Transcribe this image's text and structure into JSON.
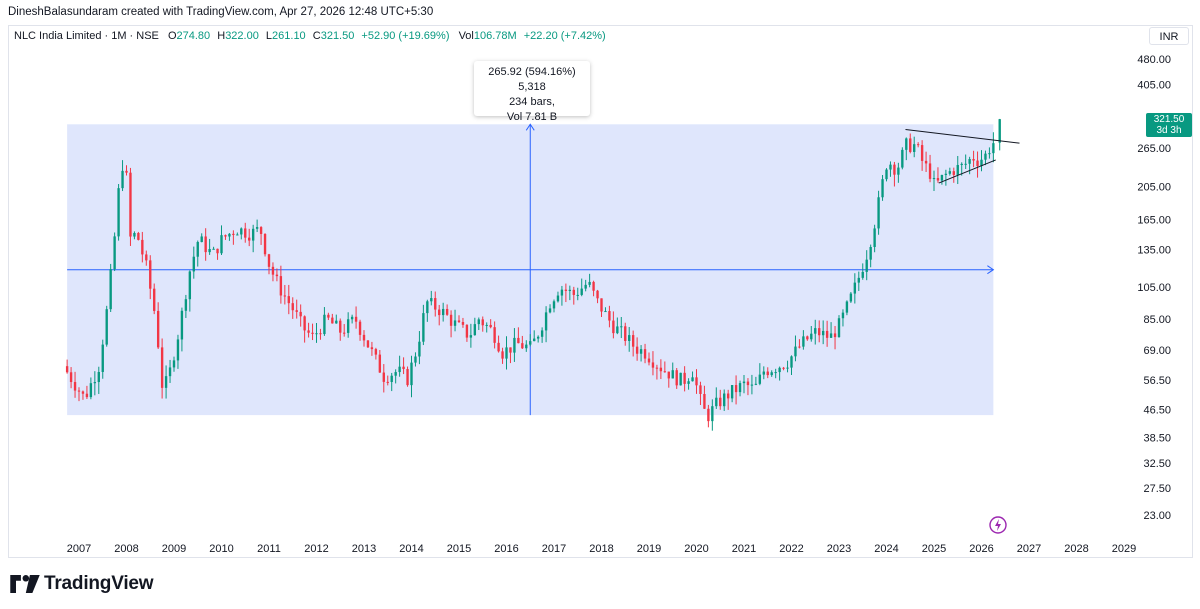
{
  "header": {
    "text": "DineshBalasundaram created with TradingView.com, Apr 27, 2026 12:48 UTC+5:30"
  },
  "legend": {
    "symbol": "NLC India Limited · 1M · NSE",
    "o_label": "O",
    "o_value": "274.80",
    "h_label": "H",
    "h_value": "322.00",
    "l_label": "L",
    "l_value": "261.10",
    "c_label": "C",
    "c_value": "321.50",
    "change": "+52.90 (+19.69%)",
    "vol_label": "Vol",
    "vol_value": "106.78M",
    "vol_change": "+22.20 (+7.42%)"
  },
  "currency": "INR",
  "price_tag": {
    "price": "321.50",
    "countdown": "3d 3h"
  },
  "measure_tooltip": {
    "line1": "265.92 (594.16%) 5,318",
    "line2": "234 bars,",
    "line3": "Vol 7.81 B"
  },
  "brand": {
    "name": "TradingView"
  },
  "colors": {
    "up": "#089981",
    "down": "#f23645",
    "measure_fill": "#dfe6fc",
    "measure_line": "#2962ff",
    "axis_text": "#131722"
  },
  "chart_data": {
    "type": "candlestick",
    "symbol": "NLC India Limited",
    "interval": "1M",
    "yscale": "log",
    "ylim": [
      21,
      560
    ],
    "xlim": [
      2006.7,
      2029.8
    ],
    "y_ticks": [
      "480.00",
      "405.00",
      "265.00",
      "205.00",
      "165.00",
      "135.00",
      "105.00",
      "85.00",
      "69.00",
      "56.50",
      "46.50",
      "38.50",
      "32.50",
      "27.50",
      "23.00"
    ],
    "y_tick_values": [
      480,
      405,
      265,
      205,
      165,
      135,
      105,
      85,
      69,
      56.5,
      46.5,
      38.5,
      32.5,
      27.5,
      23
    ],
    "x_ticks": [
      "2007",
      "2008",
      "2009",
      "2010",
      "2011",
      "2012",
      "2013",
      "2014",
      "2015",
      "2016",
      "2017",
      "2018",
      "2019",
      "2020",
      "2021",
      "2022",
      "2023",
      "2024",
      "2025",
      "2026",
      "2027",
      "2028",
      "2029"
    ],
    "x_tick_values": [
      2007,
      2008,
      2009,
      2010,
      2011,
      2012,
      2013,
      2014,
      2015,
      2016,
      2017,
      2018,
      2019,
      2020,
      2021,
      2022,
      2023,
      2024,
      2025,
      2026,
      2027,
      2028,
      2029
    ],
    "anchors": [
      [
        2006.75,
        62
      ],
      [
        2007.2,
        50
      ],
      [
        2007.5,
        62
      ],
      [
        2007.65,
        85
      ],
      [
        2007.8,
        130
      ],
      [
        2007.92,
        200
      ],
      [
        2008.05,
        265
      ],
      [
        2008.15,
        145
      ],
      [
        2008.3,
        150
      ],
      [
        2008.5,
        120
      ],
      [
        2008.7,
        85
      ],
      [
        2008.85,
        52
      ],
      [
        2009.0,
        60
      ],
      [
        2009.2,
        80
      ],
      [
        2009.4,
        115
      ],
      [
        2009.6,
        145
      ],
      [
        2009.9,
        130
      ],
      [
        2010.1,
        145
      ],
      [
        2010.4,
        155
      ],
      [
        2010.7,
        150
      ],
      [
        2010.9,
        155
      ],
      [
        2011.1,
        120
      ],
      [
        2011.3,
        105
      ],
      [
        2011.6,
        90
      ],
      [
        2011.8,
        80
      ],
      [
        2012.0,
        75
      ],
      [
        2012.3,
        85
      ],
      [
        2012.6,
        78
      ],
      [
        2012.9,
        85
      ],
      [
        2013.2,
        70
      ],
      [
        2013.5,
        58
      ],
      [
        2013.8,
        60
      ],
      [
        2014.0,
        57
      ],
      [
        2014.2,
        70
      ],
      [
        2014.4,
        95
      ],
      [
        2014.7,
        90
      ],
      [
        2015.0,
        82
      ],
      [
        2015.3,
        76
      ],
      [
        2015.5,
        85
      ],
      [
        2015.8,
        78
      ],
      [
        2016.0,
        68
      ],
      [
        2016.3,
        72
      ],
      [
        2016.6,
        70
      ],
      [
        2016.8,
        80
      ],
      [
        2017.0,
        95
      ],
      [
        2017.2,
        105
      ],
      [
        2017.5,
        100
      ],
      [
        2017.8,
        108
      ],
      [
        2018.0,
        95
      ],
      [
        2018.3,
        82
      ],
      [
        2018.6,
        75
      ],
      [
        2018.8,
        70
      ],
      [
        2019.0,
        68
      ],
      [
        2019.3,
        62
      ],
      [
        2019.6,
        58
      ],
      [
        2019.8,
        56
      ],
      [
        2020.0,
        60
      ],
      [
        2020.15,
        50
      ],
      [
        2020.3,
        44
      ],
      [
        2020.5,
        48
      ],
      [
        2020.8,
        52
      ],
      [
        2021.1,
        55
      ],
      [
        2021.3,
        53
      ],
      [
        2021.5,
        60
      ],
      [
        2021.8,
        62
      ],
      [
        2022.0,
        64
      ],
      [
        2022.3,
        72
      ],
      [
        2022.6,
        78
      ],
      [
        2022.9,
        75
      ],
      [
        2023.1,
        82
      ],
      [
        2023.3,
        95
      ],
      [
        2023.5,
        112
      ],
      [
        2023.7,
        135
      ],
      [
        2023.85,
        165
      ],
      [
        2024.0,
        210
      ],
      [
        2024.1,
        245
      ],
      [
        2024.3,
        230
      ],
      [
        2024.5,
        270
      ],
      [
        2024.7,
        270
      ],
      [
        2024.85,
        240
      ],
      [
        2025.0,
        225
      ],
      [
        2025.1,
        205
      ],
      [
        2025.3,
        220
      ],
      [
        2025.5,
        230
      ],
      [
        2025.7,
        235
      ],
      [
        2025.9,
        250
      ],
      [
        2026.0,
        245
      ],
      [
        2026.15,
        250
      ],
      [
        2026.25,
        265
      ],
      [
        2026.3,
        274.8
      ]
    ],
    "last_candle": {
      "date": "2026-04",
      "open": 274.8,
      "high": 322.0,
      "low": 261.1,
      "close": 321.5
    },
    "measure": {
      "from_price": 44.75,
      "to_price": 310.67,
      "from_date": 2006.75,
      "to_date": 2026.25,
      "change": "265.92 (594.16%)",
      "bars": 234,
      "volume": "7.81 B"
    },
    "trendlines": [
      {
        "from": [
          2024.4,
          300
        ],
        "to": [
          2026.8,
          274
        ]
      },
      {
        "from": [
          2025.1,
          210
        ],
        "to": [
          2026.3,
          245
        ]
      }
    ]
  }
}
